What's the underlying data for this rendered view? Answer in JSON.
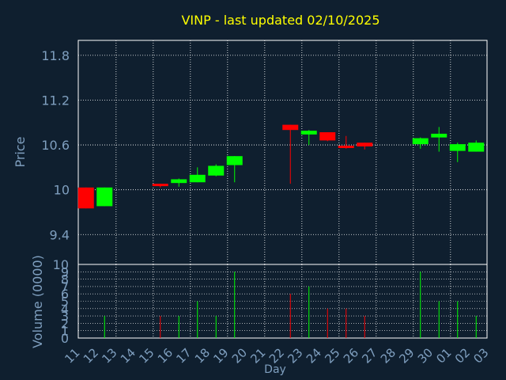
{
  "chart_data": {
    "type": "candlestick",
    "title": "VINP - last updated 02/10/2025",
    "xlabel": "Day",
    "colors": {
      "background": "#0f1f2f",
      "title": "#ffff00",
      "axis_text": "#7f9fbf",
      "axis_line": "#ffffff",
      "grid": "#ffffff",
      "up": "#00ff00",
      "down": "#ff0000"
    },
    "x_ticks": [
      "11",
      "12",
      "13",
      "14",
      "15",
      "16",
      "17",
      "18",
      "19",
      "20",
      "21",
      "22",
      "23",
      "24",
      "25",
      "26",
      "27",
      "28",
      "29",
      "30",
      "01",
      "02",
      "03"
    ],
    "price_panel": {
      "ylabel": "Price",
      "ylim": [
        9.0,
        12.0
      ],
      "y_ticks": [
        "9.4",
        "10",
        "10.6",
        "11.2",
        "11.8"
      ],
      "y_tick_values": [
        9.4,
        10.0,
        10.6,
        11.2,
        11.8
      ]
    },
    "volume_panel": {
      "ylabel": "Volume (0000)",
      "ylim": [
        0,
        10
      ],
      "y_ticks": [
        "0",
        "1",
        "2",
        "3",
        "4",
        "5",
        "6",
        "7",
        "8",
        "9",
        "10"
      ],
      "y_tick_values": [
        0,
        1,
        2,
        3,
        4,
        5,
        6,
        7,
        8,
        9,
        10
      ]
    },
    "candles": [
      {
        "day": "11",
        "slot": 0,
        "open": 10.03,
        "high": 10.03,
        "low": 9.75,
        "close": 9.75,
        "volume": 0
      },
      {
        "day": "12",
        "slot": 1,
        "open": 9.78,
        "high": 10.03,
        "low": 9.78,
        "close": 10.03,
        "volume": 3
      },
      {
        "day": "15",
        "slot": 4,
        "open": 10.08,
        "high": 10.08,
        "low": 10.03,
        "close": 10.06,
        "volume": 3
      },
      {
        "day": "16",
        "slot": 5,
        "open": 10.09,
        "high": 10.15,
        "low": 10.04,
        "close": 10.14,
        "volume": 3
      },
      {
        "day": "17",
        "slot": 6,
        "open": 10.1,
        "high": 10.3,
        "low": 10.1,
        "close": 10.2,
        "volume": 5
      },
      {
        "day": "18",
        "slot": 7,
        "open": 10.19,
        "high": 10.34,
        "low": 10.18,
        "close": 10.32,
        "volume": 3
      },
      {
        "day": "19",
        "slot": 8,
        "open": 10.33,
        "high": 10.45,
        "low": 10.1,
        "close": 10.45,
        "volume": 9
      },
      {
        "day": "22",
        "slot": 11,
        "open": 10.87,
        "high": 10.87,
        "low": 10.08,
        "close": 10.8,
        "volume": 6
      },
      {
        "day": "23",
        "slot": 12,
        "open": 10.74,
        "high": 10.8,
        "low": 10.6,
        "close": 10.79,
        "volume": 7
      },
      {
        "day": "24",
        "slot": 13,
        "open": 10.77,
        "high": 10.77,
        "low": 10.65,
        "close": 10.66,
        "volume": 4
      },
      {
        "day": "25",
        "slot": 14,
        "open": 10.59,
        "high": 10.72,
        "low": 10.55,
        "close": 10.57,
        "volume": 4
      },
      {
        "day": "26",
        "slot": 15,
        "open": 10.63,
        "high": 10.63,
        "low": 10.54,
        "close": 10.58,
        "volume": 3
      },
      {
        "day": "29",
        "slot": 18,
        "open": 10.61,
        "high": 10.7,
        "low": 10.55,
        "close": 10.69,
        "volume": 9
      },
      {
        "day": "30",
        "slot": 19,
        "open": 10.7,
        "high": 10.84,
        "low": 10.51,
        "close": 10.75,
        "volume": 5
      },
      {
        "day": "01",
        "slot": 20,
        "open": 10.52,
        "high": 10.63,
        "low": 10.37,
        "close": 10.61,
        "volume": 5
      },
      {
        "day": "02",
        "slot": 21,
        "open": 10.51,
        "high": 10.66,
        "low": 10.51,
        "close": 10.63,
        "volume": 3
      }
    ]
  }
}
